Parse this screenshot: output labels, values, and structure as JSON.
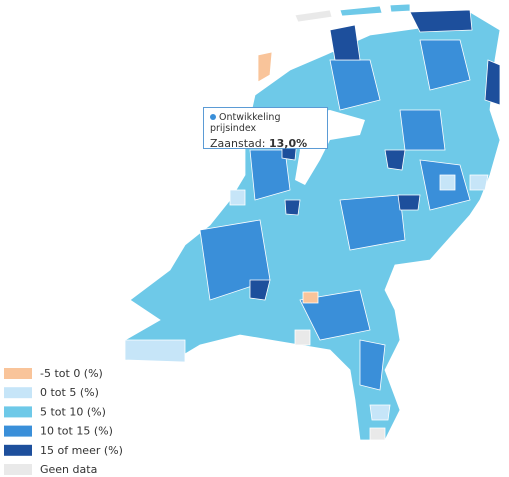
{
  "legend": [
    {
      "label": "-5 tot 0 (%)",
      "color": "#f9c49a"
    },
    {
      "label": "0 tot 5 (%)",
      "color": "#c6e5f8"
    },
    {
      "label": "5 tot 10 (%)",
      "color": "#6ec9e8"
    },
    {
      "label": "10 tot 15 (%)",
      "color": "#3a8fd9"
    },
    {
      "label": "15 of meer (%)",
      "color": "#1d4f9c"
    },
    {
      "label": "Geen data",
      "color": "#e9e9e9"
    }
  ],
  "tooltip": {
    "title": "Ontwikkeling prijsindex",
    "region": "Zaanstad:",
    "value": "13,0%"
  }
}
